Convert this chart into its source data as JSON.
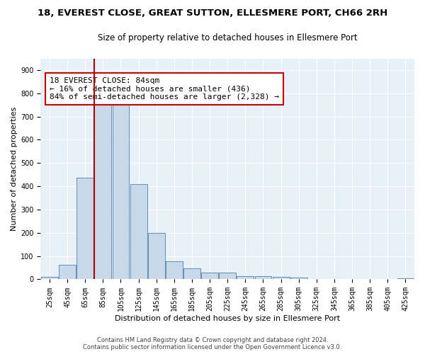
{
  "title": "18, EVEREST CLOSE, GREAT SUTTON, ELLESMERE PORT, CH66 2RH",
  "subtitle": "Size of property relative to detached houses in Ellesmere Port",
  "xlabel": "Distribution of detached houses by size in Ellesmere Port",
  "ylabel": "Number of detached properties",
  "footer_line1": "Contains HM Land Registry data © Crown copyright and database right 2024.",
  "footer_line2": "Contains public sector information licensed under the Open Government Licence v3.0.",
  "bins": [
    "25sqm",
    "45sqm",
    "65sqm",
    "85sqm",
    "105sqm",
    "125sqm",
    "145sqm",
    "165sqm",
    "185sqm",
    "205sqm",
    "225sqm",
    "245sqm",
    "265sqm",
    "285sqm",
    "305sqm",
    "325sqm",
    "345sqm",
    "365sqm",
    "385sqm",
    "405sqm",
    "425sqm"
  ],
  "values": [
    10,
    63,
    437,
    755,
    750,
    410,
    198,
    78,
    46,
    30,
    28,
    13,
    13,
    10,
    8,
    0,
    0,
    0,
    0,
    0,
    5
  ],
  "bar_color": "#c8d8e8",
  "bar_edge_color": "#6090b8",
  "vline_x": 2.5,
  "vline_color": "#aa0000",
  "annotation_text": "18 EVEREST CLOSE: 84sqm\n← 16% of detached houses are smaller (436)\n84% of semi-detached houses are larger (2,328) →",
  "annotation_box_color": "white",
  "annotation_box_edge_color": "#cc0000",
  "ylim": [
    0,
    950
  ],
  "yticks": [
    0,
    100,
    200,
    300,
    400,
    500,
    600,
    700,
    800,
    900
  ],
  "bg_color": "#e8f0f8",
  "grid_color": "white",
  "title_fontsize": 9.5,
  "subtitle_fontsize": 8.5,
  "ylabel_fontsize": 8,
  "xlabel_fontsize": 8,
  "tick_fontsize": 7,
  "annotation_fontsize": 8,
  "footer_fontsize": 6
}
